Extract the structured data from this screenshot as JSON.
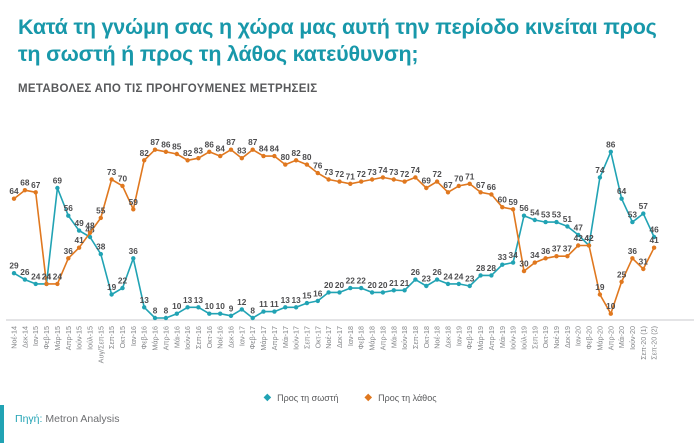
{
  "header": {
    "title": "Κατά τη γνώμη σας η χώρα μας αυτή την περίοδο κινείται προς τη σωστή ή προς τη λάθος κατεύθυνση;",
    "subtitle": "ΜΕΤΑΒΟΛΕΣ ΑΠΟ ΤΙΣ ΠΡΟΗΓΟΥΜΕΝΕΣ ΜΕΤΡΗΣΕΙΣ"
  },
  "colors": {
    "title_teal": "#1898aa",
    "subtitle_gray": "#58595b",
    "right_series": "#21a3b4",
    "wrong_series": "#e0781f",
    "value_label": "#4d4d4f",
    "tick_label": "#85878a",
    "axis_line": "#c9cacc"
  },
  "chart_data": {
    "type": "line",
    "title": "",
    "xlabel": "",
    "ylabel": "",
    "ylim": [
      0,
      100
    ],
    "grid": false,
    "legend_position": "bottom",
    "categories": [
      "Νοέ-14",
      "Δεκ-14",
      "Ιαν-15",
      "Φεβ-15",
      "Μάρ-15",
      "Απρ-15",
      "Ιούν-15",
      "Ιούλ-15",
      "Αυγ/Σεπ-15",
      "Σεπ-15",
      "Οκτ-15",
      "Ιαν-16",
      "Φεβ-16",
      "Μάρ-16",
      "Απρ-16",
      "Μάι-16",
      "Ιούν-16",
      "Σεπ-16",
      "Οκτ-16",
      "Νοέ-16",
      "Δεκ-16",
      "Ιαν-17",
      "Φεβ-17",
      "Μάρ-17",
      "Απρ-17",
      "Μάι-17",
      "Ιούν-17",
      "Σεπ-17",
      "Οκτ-17",
      "Νοέ-17",
      "Δεκ-17",
      "Ιαν-18",
      "Φεβ-18",
      "Μάρ-18",
      "Απρ-18",
      "Μάι-18",
      "Ιούν-18",
      "Σεπ-18",
      "Οκτ-18",
      "Νοέ-18",
      "Δεκ-18",
      "Ιαν-19",
      "Φεβ-19",
      "Μάρ-19",
      "Απρ-19",
      "Μάι-19",
      "Ιούν-19",
      "Ιούλ-19",
      "Σεπ-19",
      "Οκτ-19",
      "Νοέ-19",
      "Δεκ-19",
      "Ιαν-20",
      "Φεβ-20",
      "Μάρ-20",
      "Απρ-20",
      "Μάι-20",
      "Ιούν-20",
      "Σεπ-20 (1)",
      "Σεπ-20 (2)"
    ],
    "series": [
      {
        "name": "Προς τη σωστή",
        "color": "#21a3b4",
        "values": [
          29,
          26,
          24,
          24,
          69,
          56,
          49,
          46,
          38,
          19,
          22,
          36,
          13,
          8,
          8,
          10,
          13,
          13,
          10,
          10,
          9,
          12,
          8,
          11,
          11,
          13,
          13,
          15,
          16,
          20,
          20,
          22,
          22,
          20,
          20,
          21,
          21,
          26,
          23,
          26,
          24,
          24,
          23,
          28,
          28,
          33,
          34,
          56,
          54,
          53,
          53,
          51,
          47,
          42,
          74,
          86,
          64,
          53,
          57,
          46
        ]
      },
      {
        "name": "Προς τη λάθος",
        "color": "#e0781f",
        "values": [
          64,
          68,
          67,
          24,
          24,
          36,
          41,
          48,
          55,
          73,
          70,
          59,
          82,
          87,
          86,
          85,
          82,
          83,
          86,
          84,
          87,
          83,
          87,
          84,
          84,
          80,
          82,
          80,
          76,
          73,
          72,
          71,
          72,
          73,
          74,
          73,
          72,
          74,
          69,
          72,
          67,
          70,
          71,
          67,
          66,
          60,
          59,
          30,
          34,
          36,
          37,
          37,
          42,
          42,
          19,
          10,
          25,
          36,
          31,
          41
        ]
      }
    ]
  },
  "legend": {
    "marker": "◆"
  },
  "footer": {
    "source_label": "Πηγή:",
    "source_value": " Metron Analysis"
  }
}
